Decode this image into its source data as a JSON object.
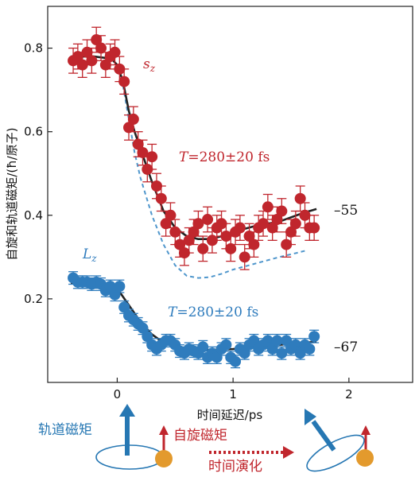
{
  "chart_data": {
    "type": "scatter",
    "xlabel": "时间延迟/ps",
    "ylabel": "自旋和轨道磁矩/(ħ/原子)",
    "xlim": [
      -0.6,
      2.55
    ],
    "ylim": [
      0,
      0.9
    ],
    "x_ticks": [
      "0",
      "1",
      "2"
    ],
    "x_tick_values": [
      0,
      1,
      2
    ],
    "y_ticks": [
      "0.2",
      "0.4",
      "0.6",
      "0.8"
    ],
    "y_tick_values": [
      0.2,
      0.4,
      0.6,
      0.8
    ],
    "grid": false,
    "series": [
      {
        "name": "s_z",
        "color": "#c0262d",
        "x": [
          -0.38,
          -0.34,
          -0.3,
          -0.26,
          -0.22,
          -0.18,
          -0.14,
          -0.1,
          -0.06,
          -0.02,
          0.02,
          0.06,
          0.1,
          0.14,
          0.18,
          0.22,
          0.26,
          0.3,
          0.34,
          0.38,
          0.42,
          0.46,
          0.5,
          0.54,
          0.58,
          0.62,
          0.66,
          0.7,
          0.74,
          0.78,
          0.82,
          0.86,
          0.9,
          0.94,
          0.98,
          1.02,
          1.06,
          1.1,
          1.14,
          1.18,
          1.22,
          1.26,
          1.3,
          1.34,
          1.38,
          1.42,
          1.46,
          1.5,
          1.54,
          1.58,
          1.62,
          1.66,
          1.7
        ],
        "y": [
          0.77,
          0.78,
          0.76,
          0.79,
          0.77,
          0.82,
          0.8,
          0.76,
          0.78,
          0.79,
          0.75,
          0.72,
          0.61,
          0.63,
          0.57,
          0.55,
          0.51,
          0.54,
          0.47,
          0.44,
          0.38,
          0.4,
          0.36,
          0.33,
          0.31,
          0.34,
          0.36,
          0.38,
          0.32,
          0.39,
          0.34,
          0.37,
          0.38,
          0.35,
          0.32,
          0.36,
          0.37,
          0.3,
          0.35,
          0.33,
          0.37,
          0.38,
          0.42,
          0.37,
          0.39,
          0.41,
          0.33,
          0.36,
          0.38,
          0.44,
          0.4,
          0.37,
          0.37
        ],
        "err": [
          0.03,
          0.03,
          0.03,
          0.03,
          0.03,
          0.03,
          0.03,
          0.03,
          0.03,
          0.03,
          0.03,
          0.03,
          0.03,
          0.03,
          0.03,
          0.03,
          0.03,
          0.03,
          0.03,
          0.03,
          0.03,
          0.03,
          0.03,
          0.03,
          0.03,
          0.03,
          0.03,
          0.03,
          0.03,
          0.03,
          0.03,
          0.03,
          0.03,
          0.03,
          0.03,
          0.03,
          0.03,
          0.03,
          0.03,
          0.03,
          0.03,
          0.03,
          0.03,
          0.03,
          0.03,
          0.03,
          0.03,
          0.03,
          0.03,
          0.03,
          0.03,
          0.03,
          0.03
        ],
        "fit": {
          "x": [
            -0.4,
            -0.2,
            -0.05,
            0.0,
            0.05,
            0.1,
            0.15,
            0.2,
            0.3,
            0.4,
            0.5,
            0.6,
            0.7,
            0.8,
            0.9,
            1.0,
            1.2,
            1.4,
            1.6,
            1.72
          ],
          "y": [
            0.78,
            0.78,
            0.775,
            0.76,
            0.72,
            0.65,
            0.6,
            0.56,
            0.48,
            0.41,
            0.37,
            0.35,
            0.343,
            0.343,
            0.35,
            0.36,
            0.375,
            0.385,
            0.405,
            0.415
          ]
        },
        "fit_color": "#222222",
        "dashed": {
          "x": [
            0.0,
            0.05,
            0.1,
            0.15,
            0.2,
            0.3,
            0.4,
            0.5,
            0.6,
            0.7,
            0.8,
            0.9,
            1.0,
            1.2,
            1.4,
            1.55,
            1.62
          ],
          "y": [
            0.76,
            0.71,
            0.63,
            0.55,
            0.49,
            0.4,
            0.33,
            0.28,
            0.255,
            0.25,
            0.252,
            0.26,
            0.27,
            0.285,
            0.3,
            0.31,
            0.315
          ]
        },
        "dashed_color": "#4f96cc"
      },
      {
        "name": "L_z",
        "color": "#2f7cbd",
        "x": [
          -0.38,
          -0.34,
          -0.3,
          -0.26,
          -0.22,
          -0.18,
          -0.14,
          -0.1,
          -0.06,
          -0.02,
          0.02,
          0.06,
          0.1,
          0.14,
          0.18,
          0.22,
          0.26,
          0.3,
          0.34,
          0.38,
          0.42,
          0.46,
          0.5,
          0.54,
          0.58,
          0.62,
          0.66,
          0.7,
          0.74,
          0.78,
          0.82,
          0.86,
          0.9,
          0.94,
          0.98,
          1.02,
          1.06,
          1.1,
          1.14,
          1.18,
          1.22,
          1.26,
          1.3,
          1.34,
          1.38,
          1.42,
          1.46,
          1.5,
          1.54,
          1.58,
          1.62,
          1.66,
          1.7
        ],
        "y": [
          0.25,
          0.24,
          0.24,
          0.24,
          0.235,
          0.24,
          0.235,
          0.22,
          0.23,
          0.21,
          0.23,
          0.18,
          0.16,
          0.15,
          0.14,
          0.13,
          0.11,
          0.09,
          0.08,
          0.09,
          0.1,
          0.1,
          0.09,
          0.075,
          0.07,
          0.08,
          0.075,
          0.07,
          0.085,
          0.06,
          0.07,
          0.06,
          0.08,
          0.09,
          0.06,
          0.05,
          0.08,
          0.07,
          0.09,
          0.1,
          0.08,
          0.09,
          0.1,
          0.08,
          0.1,
          0.07,
          0.1,
          0.08,
          0.09,
          0.07,
          0.09,
          0.08,
          0.11
        ],
        "err": [
          0.015,
          0.015,
          0.015,
          0.015,
          0.015,
          0.015,
          0.015,
          0.015,
          0.015,
          0.015,
          0.015,
          0.015,
          0.015,
          0.015,
          0.015,
          0.015,
          0.015,
          0.015,
          0.015,
          0.015,
          0.015,
          0.015,
          0.015,
          0.015,
          0.015,
          0.015,
          0.015,
          0.015,
          0.015,
          0.015,
          0.015,
          0.015,
          0.015,
          0.015,
          0.015,
          0.015,
          0.015,
          0.015,
          0.015,
          0.015,
          0.015,
          0.015,
          0.015,
          0.015,
          0.015,
          0.015,
          0.015,
          0.015,
          0.015,
          0.015,
          0.015,
          0.015,
          0.015
        ],
        "fit": {
          "x": [
            -0.4,
            -0.2,
            -0.05,
            0.0,
            0.05,
            0.1,
            0.15,
            0.2,
            0.3,
            0.4,
            0.5,
            0.6,
            0.7,
            0.8,
            1.0,
            1.2,
            1.4,
            1.6,
            1.72
          ],
          "y": [
            0.237,
            0.237,
            0.233,
            0.225,
            0.205,
            0.185,
            0.165,
            0.145,
            0.115,
            0.095,
            0.085,
            0.08,
            0.078,
            0.078,
            0.08,
            0.085,
            0.09,
            0.095,
            0.097
          ]
        },
        "fit_color": "#222222"
      }
    ],
    "annotations": {
      "sz_label": "s",
      "sz_sub": "z",
      "lz_label": "L",
      "lz_sub": "z",
      "t_red_prefix": "T",
      "t_red_rest": "=280±20 fs",
      "t_blue_prefix": "T",
      "t_blue_rest": "=280±20 fs",
      "right_top": "–55",
      "right_bottom": "–67"
    },
    "legend_diagram": {
      "orbital_label": "轨道磁矩",
      "spin_label": "自旋磁矩",
      "time_label": "时间演化",
      "orbital_color": "#2677b3",
      "spin_color": "#c0262d",
      "ball_color": "#e39a2d"
    }
  }
}
